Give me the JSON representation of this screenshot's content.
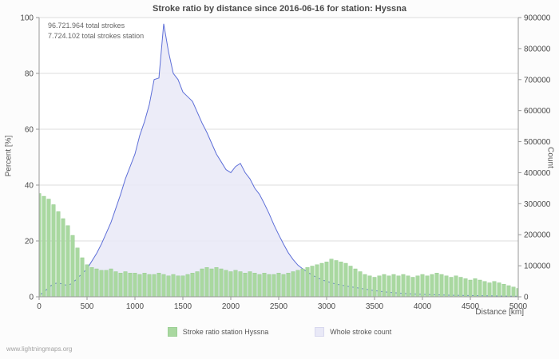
{
  "page": {
    "watermark": "www.lightningmaps.org"
  },
  "chart_data": {
    "type": "mixed",
    "title": "Stroke ratio by distance since 2016-06-16 for station: Hyssna",
    "annotations": [
      "96.721.964 total strokes",
      "7.724.102 total strokes station"
    ],
    "xlabel": "Distance   [km]",
    "ylabel_left": "Percent   [%]",
    "ylabel_right": "Count",
    "x_max": 5000,
    "x_ticks": [
      0,
      500,
      1000,
      1500,
      2000,
      2500,
      3000,
      3500,
      4000,
      4500,
      5000
    ],
    "y_left": {
      "min": 0,
      "max": 100,
      "ticks": [
        0,
        20,
        40,
        60,
        80,
        100
      ]
    },
    "y_right": {
      "min": 0,
      "max": 900000,
      "ticks": [
        0,
        100000,
        200000,
        300000,
        400000,
        500000,
        600000,
        700000,
        800000,
        900000
      ]
    },
    "grid": "horizontal",
    "legend_position": "bottom",
    "series": [
      {
        "name": "Stroke ratio station Hyssna",
        "type": "bar",
        "axis": "left",
        "unit": "percent",
        "color": "#a9d8a0",
        "edge_color": "#8cc787",
        "x_step": 50,
        "values": [
          37,
          36,
          35,
          33,
          30.5,
          28,
          25.5,
          22,
          17.5,
          14,
          11.5,
          10.5,
          10,
          9.5,
          9.5,
          10,
          9,
          8.5,
          9,
          8.5,
          8.5,
          8,
          8.5,
          8,
          8,
          8.5,
          8,
          7.5,
          8,
          7.5,
          7.5,
          8,
          8.5,
          9,
          10,
          10.5,
          10,
          10.5,
          10,
          9.5,
          9,
          9.5,
          9,
          8.5,
          9,
          8.5,
          8,
          8.5,
          8,
          8,
          8.5,
          8,
          8.5,
          9,
          9.5,
          10,
          10.5,
          11,
          11.5,
          12,
          12.5,
          13.5,
          13,
          12.5,
          12,
          11,
          10,
          9,
          8,
          7.5,
          7,
          7.5,
          8,
          7.5,
          8,
          7.5,
          8,
          7.5,
          7,
          7.5,
          8,
          7.5,
          8,
          8.5,
          8,
          7.5,
          7,
          7.5,
          7,
          6.5,
          6,
          6.5,
          6,
          5.5,
          5,
          5.5,
          5,
          4.5,
          4,
          3.5,
          3
        ]
      },
      {
        "name": "Whole stroke count",
        "type": "area",
        "axis": "right",
        "unit": "count",
        "color": "#e9e9f7",
        "line_color": "#5e6fd8",
        "x_step": 50,
        "values": [
          5000,
          15000,
          30000,
          42000,
          45000,
          40000,
          36000,
          45000,
          60000,
          75000,
          90000,
          115000,
          140000,
          170000,
          205000,
          240000,
          285000,
          330000,
          380000,
          420000,
          460000,
          520000,
          565000,
          620000,
          700000,
          705000,
          880000,
          790000,
          720000,
          700000,
          660000,
          645000,
          630000,
          595000,
          560000,
          530000,
          495000,
          460000,
          435000,
          410000,
          400000,
          420000,
          430000,
          400000,
          380000,
          350000,
          330000,
          300000,
          268000,
          232000,
          200000,
          170000,
          142000,
          120000,
          102000,
          90000,
          80000,
          70000,
          62000,
          55000,
          50000,
          45000,
          41000,
          38000,
          35000,
          32000,
          30000,
          27000,
          25000,
          22000,
          20000,
          18000,
          16000,
          14500,
          13000,
          12000,
          11000,
          10000,
          9000,
          8500,
          8000,
          7500,
          7000,
          6500,
          6000,
          5500,
          5000,
          4800,
          4500,
          4200,
          4000,
          3800,
          3500,
          3200,
          3000,
          2800,
          2500,
          2200,
          2000,
          1800,
          1500
        ]
      }
    ],
    "legend": [
      {
        "label": "Stroke ratio station Hyssna",
        "color": "#a9d8a0",
        "border": "#9ccf95"
      },
      {
        "label": "Whole stroke count",
        "color": "#e9e9f7",
        "border": "#d8d8ee"
      }
    ]
  }
}
